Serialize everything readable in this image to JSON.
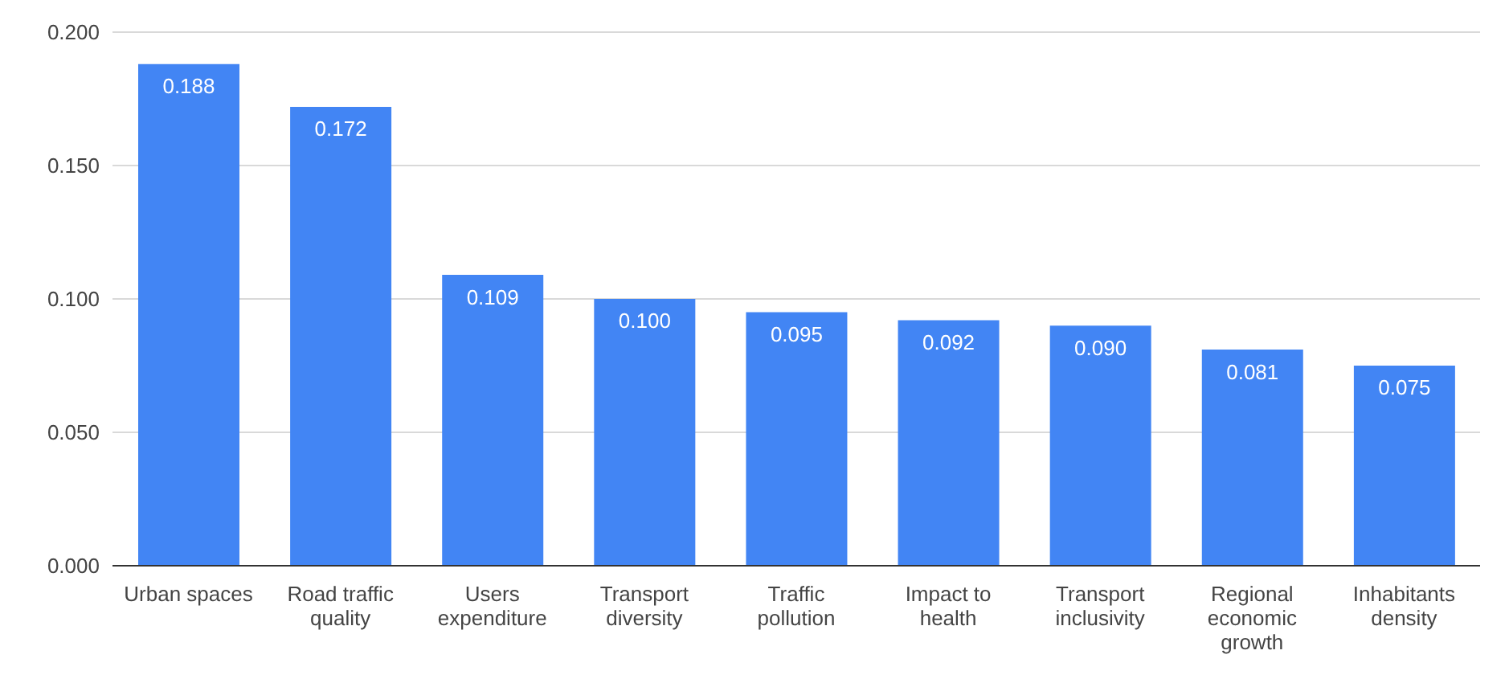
{
  "chart_data": {
    "type": "bar",
    "categories": [
      "Urban spaces",
      "Road traffic quality",
      "Users expenditure",
      "Transport diversity",
      "Traffic pollution",
      "Impact to health",
      "Transport inclusivity",
      "Regional economic growth",
      "Inhabitants density"
    ],
    "values": [
      0.188,
      0.172,
      0.109,
      0.1,
      0.095,
      0.092,
      0.09,
      0.081,
      0.075
    ],
    "value_labels": [
      "0.188",
      "0.172",
      "0.109",
      "0.100",
      "0.095",
      "0.092",
      "0.090",
      "0.081",
      "0.075"
    ],
    "color": "#4285f4",
    "ylim": [
      0,
      0.2
    ],
    "yticks": [
      {
        "value": 0,
        "label": "0.000"
      },
      {
        "value": 0.05,
        "label": "0.050"
      },
      {
        "value": 0.1,
        "label": "0.100"
      },
      {
        "value": 0.15,
        "label": "0.150"
      },
      {
        "value": 0.2,
        "label": "0.200"
      }
    ],
    "grid": "y"
  }
}
